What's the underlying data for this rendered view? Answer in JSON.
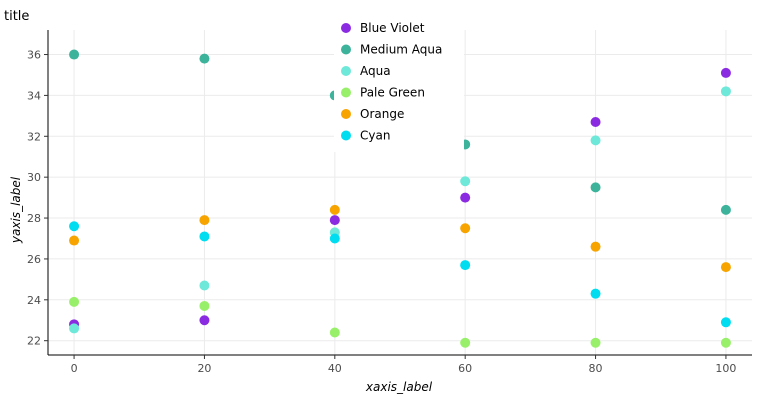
{
  "chart_data": {
    "type": "scatter",
    "title": "title",
    "xlabel": "xaxis_label",
    "ylabel": "yaxis_label",
    "xlim": [
      -4,
      104
    ],
    "ylim": [
      21.3,
      37.2
    ],
    "x_ticks": [
      0,
      20,
      40,
      60,
      80,
      100
    ],
    "y_ticks": [
      22,
      24,
      26,
      28,
      30,
      32,
      34,
      36
    ],
    "grid": true,
    "legend_position": "top-right",
    "series": [
      {
        "name": "Blue Violet",
        "color": "#8a2be2",
        "x": [
          0,
          20,
          40,
          60,
          80,
          100
        ],
        "y": [
          22.8,
          23.0,
          27.9,
          29.0,
          32.7,
          35.1
        ]
      },
      {
        "name": "Medium Aqua",
        "color": "#3cb39a",
        "x": [
          0,
          20,
          40,
          60,
          80,
          100
        ],
        "y": [
          36.0,
          35.8,
          34.0,
          31.6,
          29.5,
          28.4
        ]
      },
      {
        "name": "Aqua",
        "color": "#6ee8d8",
        "x": [
          0,
          20,
          40,
          60,
          80,
          100
        ],
        "y": [
          22.6,
          24.7,
          27.3,
          29.8,
          31.8,
          34.2
        ]
      },
      {
        "name": "Pale Green",
        "color": "#98f06a",
        "x": [
          0,
          20,
          40,
          60,
          80,
          100
        ],
        "y": [
          23.9,
          23.7,
          22.4,
          21.9,
          21.9,
          21.9
        ]
      },
      {
        "name": "Orange",
        "color": "#f7a400",
        "x": [
          0,
          20,
          40,
          60,
          80,
          100
        ],
        "y": [
          26.9,
          27.9,
          28.4,
          27.5,
          26.6,
          25.6
        ]
      },
      {
        "name": "Cyan",
        "color": "#00ddf0",
        "x": [
          0,
          20,
          40,
          60,
          80,
          100
        ],
        "y": [
          27.6,
          27.1,
          27.0,
          25.7,
          24.3,
          22.9
        ]
      }
    ]
  }
}
